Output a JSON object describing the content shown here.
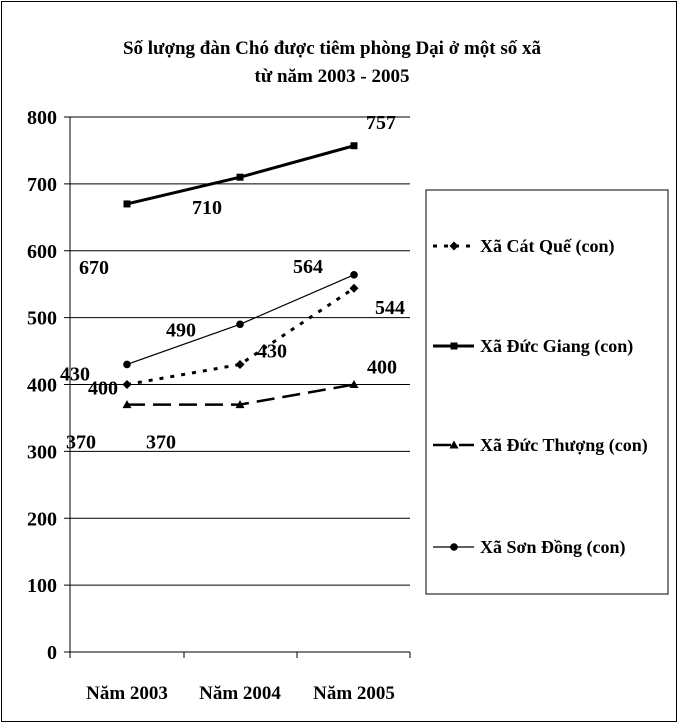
{
  "chart_data": {
    "type": "line",
    "title": [
      "Số lượng đàn Chó được tiêm phòng Dại ở một số xã",
      "từ năm 2003 - 2005"
    ],
    "categories": [
      "Năm 2003",
      "Năm 2004",
      "Năm 2005"
    ],
    "ylim": [
      0,
      800
    ],
    "yticks": [
      0,
      100,
      200,
      300,
      400,
      500,
      600,
      700,
      800
    ],
    "grid": true,
    "legend_position": "right",
    "series": [
      {
        "name": "Xã Cát Quế (con)",
        "values": [
          400,
          430,
          544
        ],
        "style": "dotted",
        "marker": "diamond",
        "labels": [
          "400",
          "430",
          "544"
        ]
      },
      {
        "name": "Xã Đức Giang (con)",
        "values": [
          670,
          710,
          757
        ],
        "style": "solid-thick",
        "marker": "square",
        "labels": [
          "670",
          "710",
          "757"
        ]
      },
      {
        "name": "Xã Đức Thượng (con)",
        "values": [
          370,
          370,
          400
        ],
        "style": "dashed",
        "marker": "triangle",
        "labels": [
          "370",
          "370",
          "400"
        ]
      },
      {
        "name": "Xã Sơn Đồng (con)",
        "values": [
          430,
          490,
          564
        ],
        "style": "solid-thin",
        "marker": "circle",
        "labels": [
          "430",
          "490",
          "564"
        ]
      }
    ],
    "colors": {
      "line": "#000000",
      "grid": "#000000",
      "background": "#ffffff"
    }
  }
}
